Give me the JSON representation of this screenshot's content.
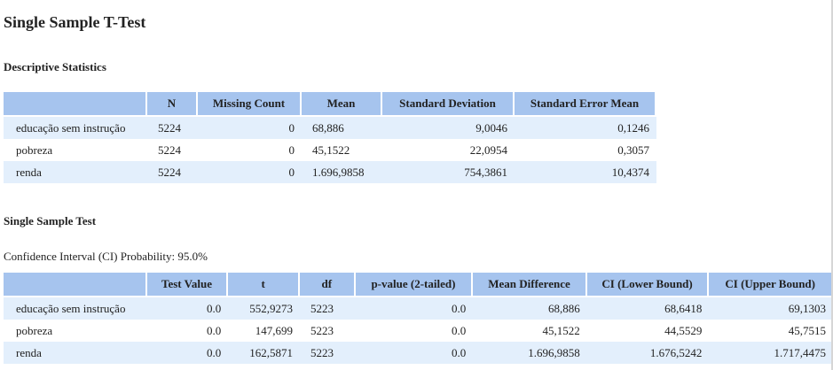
{
  "page_title": "Single Sample T-Test",
  "descriptive": {
    "title": "Descriptive Statistics",
    "headers": [
      "",
      "N",
      "Missing Count",
      "Mean",
      "Standard Deviation",
      "Standard Error Mean"
    ],
    "rows": [
      [
        "educação sem instrução",
        "5224",
        "0",
        "68,886",
        "9,0046",
        "0,1246"
      ],
      [
        "pobreza",
        "5224",
        "0",
        "45,1522",
        "22,0954",
        "0,3057"
      ],
      [
        "renda",
        "5224",
        "0",
        "1.696,9858",
        "754,3861",
        "10,4374"
      ]
    ]
  },
  "test": {
    "title": "Single Sample Test",
    "ci_note": "Confidence Interval (CI) Probability: 95.0%",
    "headers": [
      "",
      "Test Value",
      "t",
      "df",
      "p-value (2-tailed)",
      "Mean Difference",
      "CI (Lower Bound)",
      "CI (Upper Bound)"
    ],
    "rows": [
      [
        "educação sem instrução",
        "0.0",
        "552,9273",
        "5223",
        "0.0",
        "68,886",
        "68,6418",
        "69,1303"
      ],
      [
        "pobreza",
        "0.0",
        "147,699",
        "5223",
        "0.0",
        "45,1522",
        "44,5529",
        "45,7515"
      ],
      [
        "renda",
        "0.0",
        "162,5871",
        "5223",
        "0.0",
        "1.696,9858",
        "1.676,5242",
        "1.717,4475"
      ]
    ]
  }
}
